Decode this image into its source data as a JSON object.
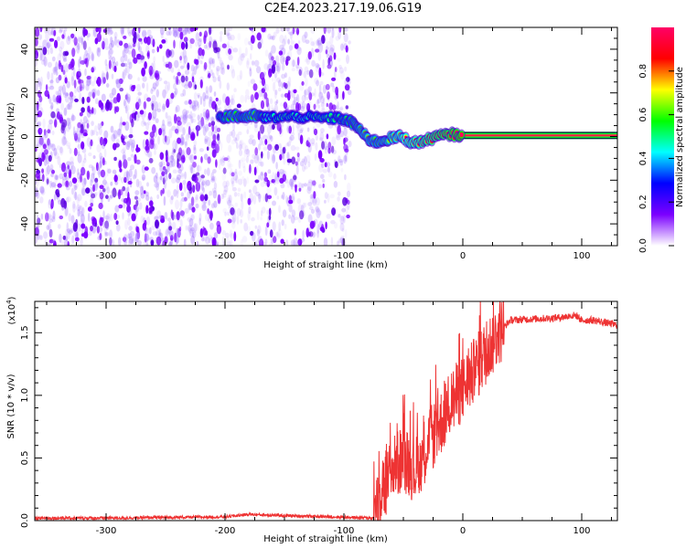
{
  "title": "C2E4.2023.217.19.06.G19",
  "chart_data": [
    {
      "type": "heatmap",
      "xlabel": "Height of straight line (km)",
      "ylabel": "Frequency (Hz)",
      "xlim": [
        -360,
        130
      ],
      "ylim": [
        -50,
        50
      ],
      "xticks": [
        -300,
        -200,
        -100,
        0,
        100
      ],
      "yticks": [
        -40,
        -20,
        0,
        20,
        40
      ],
      "colorbar": {
        "label": "Normalized spectral amplitude",
        "range": [
          0.0,
          1.0
        ],
        "ticks": [
          0.0,
          0.2,
          0.4,
          0.6,
          0.8
        ],
        "colors": [
          "#ffffff",
          "#7b00ff",
          "#0000ff",
          "#00ffff",
          "#00ff00",
          "#ffff00",
          "#ff0000",
          "#ff0066"
        ]
      },
      "signal_track": [
        {
          "x": -205,
          "y": 9,
          "amp": 0.5
        },
        {
          "x": -195,
          "y": 9.5,
          "amp": 0.6
        },
        {
          "x": -185,
          "y": 9,
          "amp": 0.55
        },
        {
          "x": -175,
          "y": 9.5,
          "amp": 0.6
        },
        {
          "x": -165,
          "y": 8.5,
          "amp": 0.45
        },
        {
          "x": -150,
          "y": 9,
          "amp": 0.5
        },
        {
          "x": -135,
          "y": 9,
          "amp": 0.45
        },
        {
          "x": -120,
          "y": 8.5,
          "amp": 0.5
        },
        {
          "x": -105,
          "y": 8.5,
          "amp": 0.5
        },
        {
          "x": -95,
          "y": 7,
          "amp": 0.55
        },
        {
          "x": -88,
          "y": 4,
          "amp": 0.6
        },
        {
          "x": -80,
          "y": -1,
          "amp": 0.65
        },
        {
          "x": -72,
          "y": -2.5,
          "amp": 0.6
        },
        {
          "x": -62,
          "y": -1,
          "amp": 0.65
        },
        {
          "x": -52,
          "y": 0,
          "amp": 0.7
        },
        {
          "x": -42,
          "y": -3,
          "amp": 0.75
        },
        {
          "x": -32,
          "y": -2,
          "amp": 0.8
        },
        {
          "x": -22,
          "y": 0,
          "amp": 0.85
        },
        {
          "x": -10,
          "y": 1,
          "amp": 0.9
        },
        {
          "x": 0,
          "y": 0.5,
          "amp": 0.95
        },
        {
          "x": 130,
          "y": 0,
          "amp": 1.0
        }
      ]
    },
    {
      "type": "line",
      "xlabel": "Height of straight line (km)",
      "ylabel": "SNR (10 * v/v)",
      "yscale_label": "(x10",
      "yscale_exponent": "4",
      "xlim": [
        -360,
        130
      ],
      "ylim": [
        0,
        1.75
      ],
      "xticks": [
        -300,
        -200,
        -100,
        0,
        100
      ],
      "yticks": [
        "0.0",
        "0.5",
        "1.0",
        "1.5"
      ],
      "color": "#ee3333",
      "series": [
        {
          "x": [
            -360,
            -300,
            -200,
            -180,
            -150,
            -110,
            -75,
            -70,
            -60,
            -50,
            -40,
            -30,
            -20,
            -10,
            0,
            10,
            20,
            30,
            40,
            60,
            80,
            95,
            100,
            110,
            130
          ],
          "y": [
            0.02,
            0.02,
            0.03,
            0.05,
            0.04,
            0.03,
            0.02,
            0.15,
            0.4,
            0.5,
            0.4,
            0.6,
            0.75,
            0.95,
            1.05,
            1.2,
            1.35,
            1.5,
            1.6,
            1.61,
            1.62,
            1.64,
            1.6,
            1.6,
            1.56
          ]
        }
      ]
    }
  ]
}
